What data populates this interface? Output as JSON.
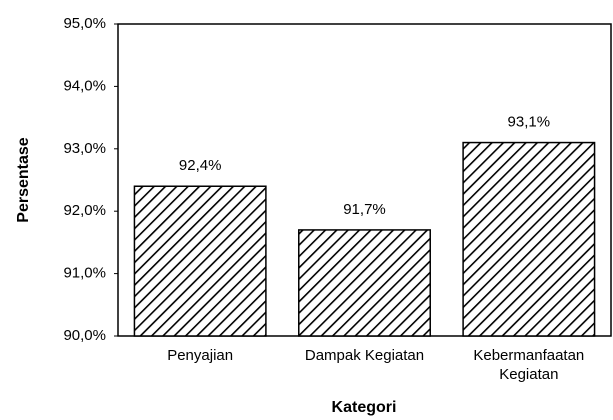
{
  "chart_data": {
    "type": "bar",
    "categories": [
      "Penyajian",
      "Dampak Kegiatan",
      "Kebermanfaatan Kegiatan"
    ],
    "values": [
      92.4,
      91.7,
      93.1
    ],
    "value_labels": [
      "92,4%",
      "91,7%",
      "93,1%"
    ],
    "color": "#000000",
    "pattern": "diagonal-hatch",
    "x_label": "Kategori",
    "y_label": "Persentase",
    "ylim": [
      90,
      95
    ],
    "yticks": [
      {
        "value": 90,
        "label": "90,0%"
      },
      {
        "value": 91,
        "label": "91,0%"
      },
      {
        "value": 92,
        "label": "92,0%"
      },
      {
        "value": 93,
        "label": "93,0%"
      },
      {
        "value": 94,
        "label": "94,0%"
      },
      {
        "value": 95,
        "label": "95,0%"
      }
    ],
    "grid": false
  }
}
